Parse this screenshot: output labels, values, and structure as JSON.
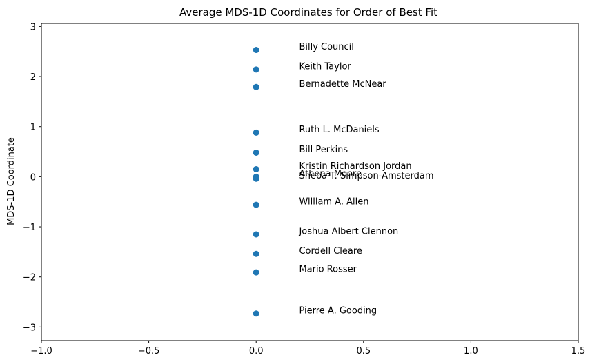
{
  "chart_data": {
    "type": "scatter",
    "title": "Average MDS-1D Coordinates for Order of Best Fit",
    "xlabel": "",
    "ylabel": "MDS-1D Coordinate",
    "xlim": [
      -1.0,
      1.5
    ],
    "ylim": [
      -3.27,
      3.06
    ],
    "x_ticks": [
      -1.0,
      -0.5,
      0.0,
      0.5,
      1.0,
      1.5
    ],
    "x_tick_labels": [
      "−1.0",
      "−0.5",
      "0.0",
      "0.5",
      "1.0",
      "1.5"
    ],
    "y_ticks": [
      3,
      2,
      1,
      0,
      -1,
      -2,
      -3
    ],
    "y_tick_labels": [
      "3",
      "2",
      "1",
      "0",
      "−1",
      "−2",
      "−3"
    ],
    "grid": false,
    "marker_color": "#1f77b4",
    "label_x_offset": 0.2,
    "points": [
      {
        "name": "Billy Council",
        "x": 0.0,
        "y": 2.53
      },
      {
        "name": "Keith Taylor",
        "x": 0.0,
        "y": 2.14
      },
      {
        "name": "Bernadette McNear",
        "x": 0.0,
        "y": 1.79
      },
      {
        "name": "Ruth L. McDaniels",
        "x": 0.0,
        "y": 0.88
      },
      {
        "name": "Bill Perkins",
        "x": 0.0,
        "y": 0.48
      },
      {
        "name": "Kristin Richardson Jordan",
        "x": 0.0,
        "y": 0.15
      },
      {
        "name": "Athena Moore",
        "x": 0.0,
        "y": 0.0
      },
      {
        "name": "Sheba T. Simpson-Amsterdam",
        "x": 0.0,
        "y": -0.04
      },
      {
        "name": "William A. Allen",
        "x": 0.0,
        "y": -0.56
      },
      {
        "name": "Joshua Albert Clennon",
        "x": 0.0,
        "y": -1.15
      },
      {
        "name": "Cordell Cleare",
        "x": 0.0,
        "y": -1.54
      },
      {
        "name": "Mario Rosser",
        "x": 0.0,
        "y": -1.91
      },
      {
        "name": "Pierre A. Gooding",
        "x": 0.0,
        "y": -2.73
      }
    ]
  }
}
